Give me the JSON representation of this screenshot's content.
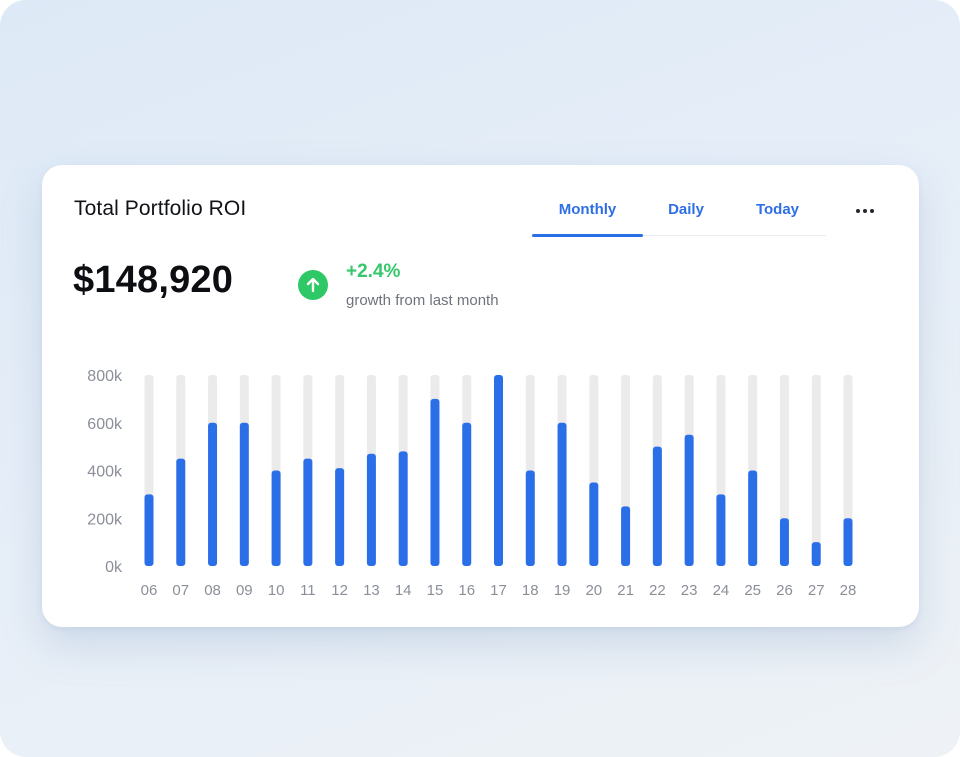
{
  "header": {
    "title": "Total Portfolio ROI",
    "tabs": [
      {
        "label": "Monthly",
        "active": true
      },
      {
        "label": "Daily",
        "active": false
      },
      {
        "label": "Today",
        "active": false
      }
    ],
    "more_icon": "more-horizontal-icon"
  },
  "summary": {
    "total": "$148,920",
    "growth_percent": "+2.4%",
    "growth_label": "growth from last month",
    "growth_icon": "arrow-up-icon",
    "growth_color": "#35c76a"
  },
  "colors": {
    "bar": "#2a6fe8",
    "track": "#ebebeb",
    "accent": "#2f6fe6"
  },
  "chart_data": {
    "type": "bar",
    "title": "",
    "xlabel": "",
    "ylabel": "",
    "ylim": [
      0,
      800000
    ],
    "yticks": [
      {
        "value": 0,
        "label": "0k"
      },
      {
        "value": 200000,
        "label": "200k"
      },
      {
        "value": 400000,
        "label": "400k"
      },
      {
        "value": 600000,
        "label": "600k"
      },
      {
        "value": 800000,
        "label": "800k"
      }
    ],
    "grid": false,
    "background_track": true,
    "categories": [
      "06",
      "07",
      "08",
      "09",
      "10",
      "11",
      "12",
      "13",
      "14",
      "15",
      "16",
      "17",
      "18",
      "19",
      "20",
      "21",
      "22",
      "23",
      "24",
      "25",
      "26",
      "27",
      "28"
    ],
    "values": [
      300000,
      450000,
      600000,
      600000,
      400000,
      450000,
      410000,
      470000,
      480000,
      700000,
      600000,
      800000,
      400000,
      600000,
      350000,
      250000,
      500000,
      550000,
      300000,
      400000,
      200000,
      100000,
      200000
    ]
  }
}
